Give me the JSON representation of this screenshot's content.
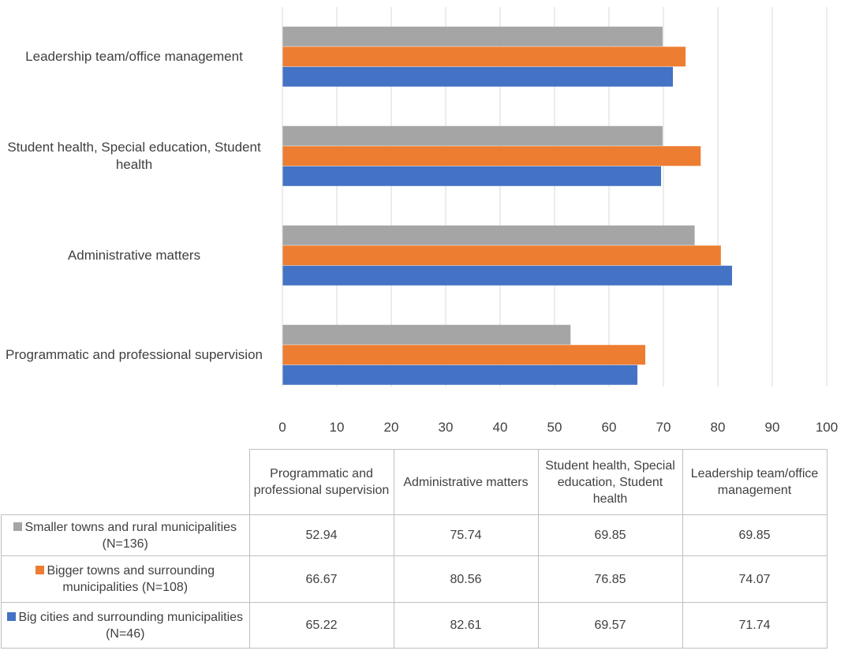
{
  "chart_data": {
    "type": "bar",
    "orientation": "horizontal",
    "categories": [
      "Programmatic and professional supervision",
      "Administrative matters",
      "Student health, Special education, Student health",
      "Leadership team/office management"
    ],
    "series": [
      {
        "name": "Smaller towns and rural municipalities (N=136)",
        "color": "#a5a5a5",
        "values": [
          52.94,
          75.74,
          69.85,
          69.85
        ]
      },
      {
        "name": "Bigger towns and surrounding municipalities (N=108)",
        "color": "#ed7d31",
        "values": [
          66.67,
          80.56,
          76.85,
          74.07
        ]
      },
      {
        "name": "Big cities and surrounding municipalities (N=46)",
        "color": "#4472c4",
        "values": [
          65.22,
          82.61,
          69.57,
          71.74
        ]
      }
    ],
    "xlim": [
      0,
      100
    ],
    "xticks": [
      0,
      10,
      20,
      30,
      40,
      50,
      60,
      70,
      80,
      90,
      100
    ],
    "grid": true
  }
}
